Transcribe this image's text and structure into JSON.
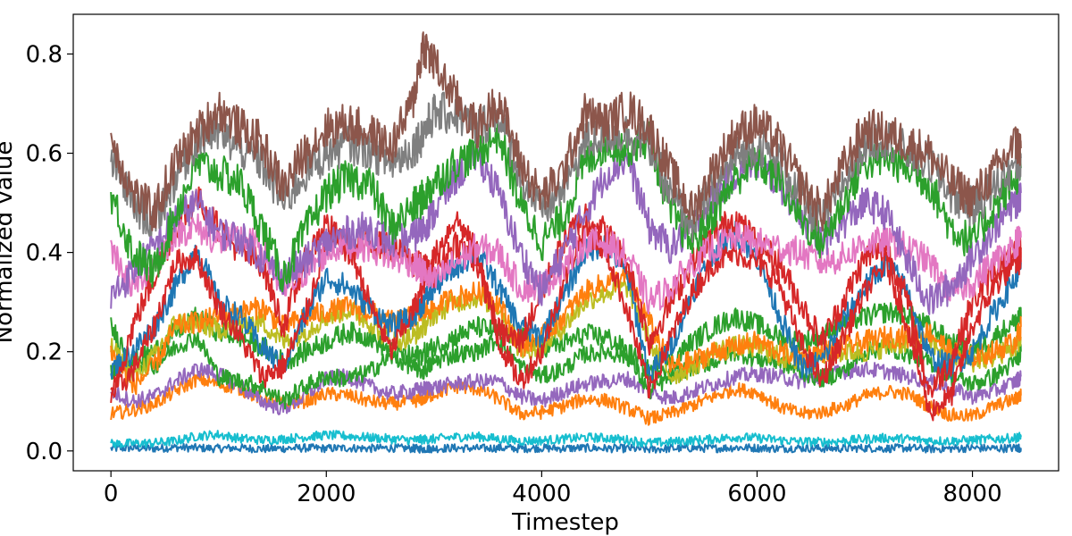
{
  "chart_data": {
    "type": "line",
    "title": "",
    "xlabel": "Timestep",
    "ylabel": "Normalized value",
    "xlim": [
      -350,
      8800
    ],
    "ylim": [
      -0.04,
      0.88
    ],
    "x_ticks": [
      0,
      2000,
      4000,
      6000,
      8000
    ],
    "x_tick_labels": [
      "0",
      "2000",
      "4000",
      "6000",
      "8000"
    ],
    "y_ticks": [
      0.0,
      0.2,
      0.4,
      0.6,
      0.8
    ],
    "y_tick_labels": [
      "0.0",
      "0.2",
      "0.4",
      "0.6",
      "0.8"
    ],
    "grid": false,
    "legend": "none",
    "x": [
      0,
      200,
      400,
      600,
      800,
      1000,
      1200,
      1400,
      1600,
      1800,
      2000,
      2200,
      2400,
      2600,
      2800,
      2900,
      3000,
      3200,
      3400,
      3600,
      3800,
      4000,
      4200,
      4400,
      4600,
      4800,
      5000,
      5200,
      5400,
      5600,
      5800,
      6000,
      6200,
      6400,
      6600,
      6800,
      7000,
      7200,
      7400,
      7600,
      7800,
      8000,
      8200,
      8400,
      8450
    ],
    "series": [
      {
        "color": "#1f77b4",
        "values": [
          0.005,
          0.006,
          0.005,
          0.007,
          0.006,
          0.005,
          0.006,
          0.004,
          0.005,
          0.006,
          0.005,
          0.006,
          0.005,
          0.006,
          0.005,
          0.004,
          0.005,
          0.006,
          0.005,
          0.006,
          0.005,
          0.006,
          0.005,
          0.006,
          0.005,
          0.005,
          0.003,
          0.005,
          0.006,
          0.005,
          0.007,
          0.006,
          0.005,
          0.006,
          0.005,
          0.005,
          0.006,
          0.005,
          0.006,
          0.004,
          0.005,
          0.006,
          0.005,
          0.006,
          0.006
        ]
      },
      {
        "color": "#17becf",
        "values": [
          0.014,
          0.015,
          0.016,
          0.02,
          0.03,
          0.033,
          0.025,
          0.022,
          0.024,
          0.028,
          0.032,
          0.03,
          0.027,
          0.024,
          0.022,
          0.023,
          0.024,
          0.028,
          0.029,
          0.024,
          0.02,
          0.021,
          0.024,
          0.027,
          0.026,
          0.022,
          0.016,
          0.018,
          0.021,
          0.024,
          0.028,
          0.026,
          0.022,
          0.019,
          0.018,
          0.02,
          0.024,
          0.026,
          0.024,
          0.021,
          0.02,
          0.022,
          0.024,
          0.026,
          0.028
        ]
      },
      {
        "color": "#ff7f0e",
        "values": [
          0.075,
          0.082,
          0.095,
          0.12,
          0.145,
          0.135,
          0.125,
          0.105,
          0.095,
          0.1,
          0.115,
          0.112,
          0.1,
          0.095,
          0.1,
          0.105,
          0.115,
          0.13,
          0.125,
          0.105,
          0.075,
          0.078,
          0.09,
          0.105,
          0.102,
          0.085,
          0.065,
          0.075,
          0.092,
          0.11,
          0.125,
          0.118,
          0.09,
          0.075,
          0.078,
          0.09,
          0.11,
          0.12,
          0.115,
          0.09,
          0.072,
          0.07,
          0.09,
          0.105,
          0.112
        ]
      },
      {
        "color": "#9467bd",
        "values": [
          0.12,
          0.1,
          0.11,
          0.14,
          0.165,
          0.155,
          0.13,
          0.1,
          0.085,
          0.11,
          0.145,
          0.15,
          0.13,
          0.115,
          0.12,
          0.125,
          0.128,
          0.135,
          0.14,
          0.14,
          0.11,
          0.1,
          0.12,
          0.135,
          0.14,
          0.145,
          0.12,
          0.105,
          0.12,
          0.135,
          0.15,
          0.155,
          0.15,
          0.14,
          0.15,
          0.16,
          0.165,
          0.16,
          0.15,
          0.14,
          0.125,
          0.11,
          0.12,
          0.14,
          0.15
        ]
      },
      {
        "color": "#2ca02c",
        "values": [
          0.16,
          0.18,
          0.17,
          0.21,
          0.23,
          0.15,
          0.14,
          0.13,
          0.1,
          0.13,
          0.15,
          0.145,
          0.16,
          0.19,
          0.17,
          0.16,
          0.18,
          0.195,
          0.2,
          0.225,
          0.17,
          0.15,
          0.165,
          0.195,
          0.2,
          0.19,
          0.12,
          0.15,
          0.17,
          0.18,
          0.2,
          0.185,
          0.18,
          0.16,
          0.145,
          0.16,
          0.2,
          0.21,
          0.195,
          0.18,
          0.15,
          0.135,
          0.15,
          0.18,
          0.2
        ]
      },
      {
        "color": "#2ca02c",
        "values": [
          0.25,
          0.18,
          0.2,
          0.24,
          0.27,
          0.24,
          0.23,
          0.21,
          0.18,
          0.2,
          0.22,
          0.24,
          0.23,
          0.2,
          0.19,
          0.195,
          0.21,
          0.23,
          0.25,
          0.24,
          0.23,
          0.21,
          0.215,
          0.235,
          0.23,
          0.2,
          0.16,
          0.18,
          0.22,
          0.25,
          0.27,
          0.255,
          0.23,
          0.22,
          0.23,
          0.26,
          0.27,
          0.28,
          0.275,
          0.25,
          0.22,
          0.2,
          0.23,
          0.26,
          0.27
        ]
      },
      {
        "color": "#bcbd22",
        "values": [
          0.21,
          0.15,
          0.19,
          0.26,
          0.255,
          0.245,
          0.255,
          0.26,
          0.22,
          0.24,
          0.27,
          0.285,
          0.26,
          0.22,
          0.23,
          0.25,
          0.275,
          0.3,
          0.31,
          0.29,
          0.2,
          0.21,
          0.25,
          0.3,
          0.32,
          0.33,
          0.22,
          0.15,
          0.17,
          0.2,
          0.21,
          0.21,
          0.19,
          0.18,
          0.19,
          0.2,
          0.2,
          0.21,
          0.22,
          0.22,
          0.19,
          0.18,
          0.19,
          0.21,
          0.23
        ]
      },
      {
        "color": "#ff7f0e",
        "values": [
          0.2,
          0.13,
          0.17,
          0.25,
          0.26,
          0.27,
          0.28,
          0.29,
          0.25,
          0.27,
          0.28,
          0.29,
          0.28,
          0.26,
          0.27,
          0.28,
          0.29,
          0.31,
          0.32,
          0.3,
          0.21,
          0.23,
          0.27,
          0.32,
          0.34,
          0.35,
          0.26,
          0.17,
          0.18,
          0.2,
          0.21,
          0.22,
          0.2,
          0.19,
          0.2,
          0.21,
          0.22,
          0.23,
          0.23,
          0.24,
          0.2,
          0.19,
          0.2,
          0.22,
          0.25
        ]
      },
      {
        "color": "#1f77b4",
        "values": [
          0.16,
          0.2,
          0.25,
          0.33,
          0.41,
          0.3,
          0.27,
          0.21,
          0.17,
          0.27,
          0.35,
          0.33,
          0.29,
          0.25,
          0.27,
          0.3,
          0.33,
          0.37,
          0.4,
          0.33,
          0.25,
          0.23,
          0.31,
          0.4,
          0.42,
          0.35,
          0.15,
          0.21,
          0.32,
          0.4,
          0.44,
          0.39,
          0.28,
          0.17,
          0.18,
          0.26,
          0.33,
          0.38,
          0.32,
          0.19,
          0.17,
          0.2,
          0.28,
          0.35,
          0.38
        ]
      },
      {
        "color": "#d62728",
        "values": [
          0.11,
          0.16,
          0.25,
          0.38,
          0.39,
          0.29,
          0.23,
          0.15,
          0.17,
          0.27,
          0.42,
          0.42,
          0.3,
          0.2,
          0.28,
          0.33,
          0.39,
          0.47,
          0.4,
          0.22,
          0.14,
          0.2,
          0.34,
          0.45,
          0.4,
          0.28,
          0.12,
          0.23,
          0.32,
          0.38,
          0.4,
          0.38,
          0.34,
          0.22,
          0.14,
          0.23,
          0.32,
          0.38,
          0.25,
          0.08,
          0.11,
          0.25,
          0.33,
          0.38,
          0.38
        ]
      },
      {
        "color": "#d62728",
        "values": [
          0.1,
          0.25,
          0.35,
          0.45,
          0.51,
          0.45,
          0.4,
          0.38,
          0.25,
          0.38,
          0.46,
          0.4,
          0.42,
          0.41,
          0.38,
          0.37,
          0.36,
          0.42,
          0.38,
          0.24,
          0.22,
          0.32,
          0.42,
          0.48,
          0.44,
          0.38,
          0.22,
          0.3,
          0.38,
          0.44,
          0.47,
          0.42,
          0.38,
          0.3,
          0.22,
          0.3,
          0.39,
          0.41,
          0.3,
          0.12,
          0.18,
          0.3,
          0.36,
          0.4,
          0.41
        ]
      },
      {
        "color": "#e377c2",
        "values": [
          0.41,
          0.33,
          0.38,
          0.44,
          0.45,
          0.42,
          0.43,
          0.41,
          0.32,
          0.36,
          0.4,
          0.42,
          0.41,
          0.39,
          0.38,
          0.36,
          0.34,
          0.38,
          0.41,
          0.4,
          0.33,
          0.33,
          0.37,
          0.42,
          0.42,
          0.39,
          0.3,
          0.33,
          0.38,
          0.41,
          0.43,
          0.42,
          0.41,
          0.4,
          0.38,
          0.39,
          0.42,
          0.42,
          0.41,
          0.38,
          0.32,
          0.34,
          0.38,
          0.42,
          0.43
        ]
      },
      {
        "color": "#9467bd",
        "values": [
          0.31,
          0.36,
          0.41,
          0.47,
          0.5,
          0.44,
          0.43,
          0.39,
          0.35,
          0.38,
          0.42,
          0.44,
          0.45,
          0.42,
          0.43,
          0.45,
          0.48,
          0.55,
          0.6,
          0.52,
          0.4,
          0.32,
          0.4,
          0.48,
          0.56,
          0.59,
          0.45,
          0.41,
          0.45,
          0.51,
          0.56,
          0.58,
          0.54,
          0.48,
          0.42,
          0.46,
          0.5,
          0.48,
          0.38,
          0.3,
          0.33,
          0.39,
          0.45,
          0.5,
          0.52
        ]
      },
      {
        "color": "#2ca02c",
        "values": [
          0.52,
          0.4,
          0.36,
          0.48,
          0.58,
          0.56,
          0.54,
          0.45,
          0.35,
          0.44,
          0.52,
          0.55,
          0.54,
          0.45,
          0.49,
          0.51,
          0.54,
          0.58,
          0.6,
          0.64,
          0.5,
          0.42,
          0.47,
          0.58,
          0.62,
          0.61,
          0.63,
          0.48,
          0.42,
          0.48,
          0.55,
          0.58,
          0.55,
          0.47,
          0.42,
          0.5,
          0.58,
          0.59,
          0.57,
          0.54,
          0.45,
          0.42,
          0.49,
          0.55,
          0.57
        ]
      },
      {
        "color": "#7f7f7f",
        "values": [
          0.59,
          0.5,
          0.46,
          0.55,
          0.63,
          0.64,
          0.61,
          0.58,
          0.5,
          0.56,
          0.6,
          0.62,
          0.61,
          0.58,
          0.61,
          0.64,
          0.68,
          0.68,
          0.65,
          0.68,
          0.56,
          0.48,
          0.53,
          0.62,
          0.64,
          0.64,
          0.62,
          0.51,
          0.46,
          0.53,
          0.59,
          0.62,
          0.59,
          0.51,
          0.46,
          0.54,
          0.62,
          0.63,
          0.6,
          0.58,
          0.52,
          0.49,
          0.53,
          0.58,
          0.59
        ]
      },
      {
        "color": "#8c564b",
        "values": [
          0.63,
          0.52,
          0.48,
          0.58,
          0.64,
          0.69,
          0.65,
          0.62,
          0.53,
          0.6,
          0.65,
          0.66,
          0.64,
          0.61,
          0.7,
          0.82,
          0.78,
          0.71,
          0.65,
          0.71,
          0.58,
          0.51,
          0.56,
          0.68,
          0.66,
          0.69,
          0.65,
          0.56,
          0.48,
          0.57,
          0.64,
          0.66,
          0.62,
          0.54,
          0.48,
          0.57,
          0.65,
          0.64,
          0.62,
          0.6,
          0.54,
          0.51,
          0.56,
          0.62,
          0.61
        ]
      }
    ]
  }
}
